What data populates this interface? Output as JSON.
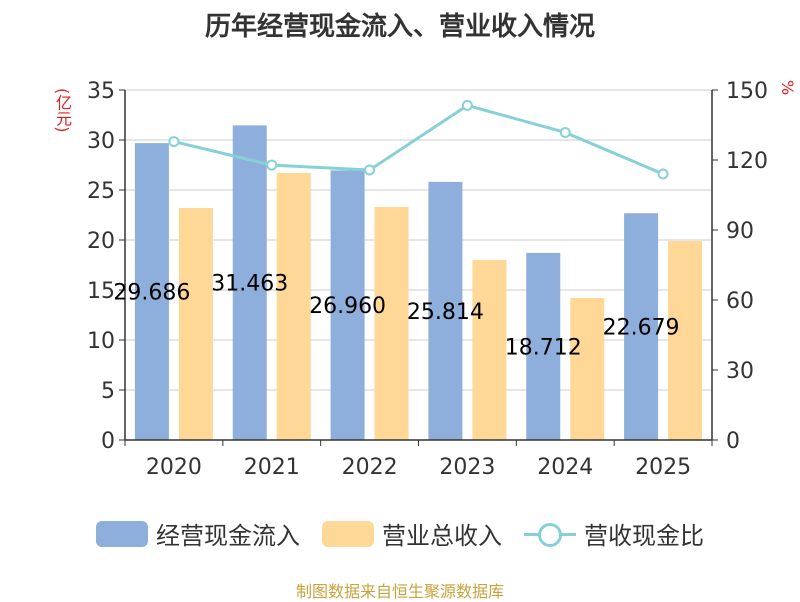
{
  "title": "历年经营现金流入、营业收入情况",
  "left_unit": "(亿元)",
  "right_unit": "%",
  "source": "制图数据来自恒生聚源数据库",
  "colors": {
    "cash_inflow": "#8eaedc",
    "revenue": "#ffd898",
    "ratio": "#86d1d8"
  },
  "chart_data": {
    "type": "bar",
    "categories": [
      "2020",
      "2021",
      "2022",
      "2023",
      "2024",
      "2025"
    ],
    "series": [
      {
        "name": "经营现金流入",
        "type": "bar",
        "axis": "left",
        "values": [
          29.686,
          31.463,
          26.96,
          25.814,
          18.712,
          22.679
        ]
      },
      {
        "name": "营业总收入",
        "type": "bar",
        "axis": "left",
        "values": [
          23.2,
          26.7,
          23.3,
          18.0,
          14.2,
          19.9
        ]
      },
      {
        "name": "营收现金比",
        "type": "line",
        "axis": "right",
        "values": [
          127.9,
          117.8,
          115.7,
          143.4,
          131.8,
          114.0
        ]
      }
    ],
    "data_labels": [
      "29.686",
      "31.463",
      "26.960",
      "25.814",
      "18.712",
      "22.679"
    ],
    "y_left": {
      "lim": [
        0,
        35
      ],
      "ticks": [
        0,
        5,
        10,
        15,
        20,
        25,
        30,
        35
      ]
    },
    "y_right": {
      "lim": [
        0,
        150
      ],
      "ticks": [
        0,
        30,
        60,
        90,
        120,
        150
      ]
    },
    "grid": true,
    "legend_position": "bottom"
  }
}
